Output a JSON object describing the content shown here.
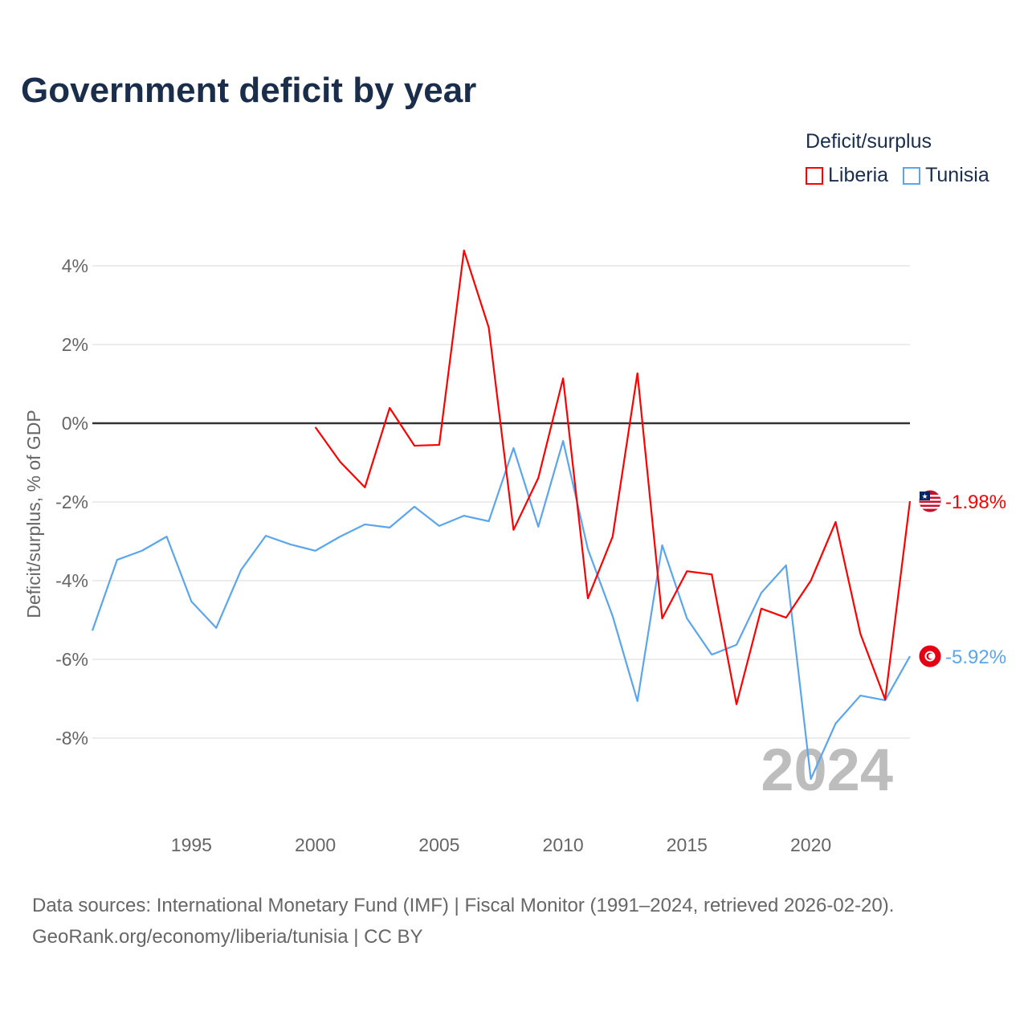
{
  "title": "Government deficit by year",
  "legend": {
    "title": "Deficit/surplus",
    "items": [
      {
        "label": "Liberia",
        "color": "#ff0000"
      },
      {
        "label": "Tunisia",
        "color": "#5aa6ee"
      }
    ]
  },
  "footer": {
    "line1": "Data sources: International Monetary Fund (IMF) | Fiscal Monitor (1991–2024, retrieved 2026-02-20).",
    "line2": "GeoRank.org/economy/liberia/tunisia | CC BY"
  },
  "chart_data": {
    "type": "line",
    "title": "Government deficit by year",
    "xlabel": "",
    "ylabel": "Deficit/surplus, % of GDP",
    "xlim": [
      1991,
      2024
    ],
    "ylim": [
      -10,
      4.5
    ],
    "yticks": [
      4,
      2,
      0,
      -2,
      -4,
      -6,
      -8
    ],
    "ytick_labels": [
      "4%",
      "2%",
      "0%",
      "-2%",
      "-4%",
      "-6%",
      "-8%"
    ],
    "xticks": [
      1995,
      2000,
      2005,
      2010,
      2015,
      2020
    ],
    "xtick_labels": [
      "1995",
      "2000",
      "2005",
      "2010",
      "2015",
      "2020"
    ],
    "year_label": "2024",
    "grid": true,
    "legend_position": "top-right",
    "series": [
      {
        "name": "Liberia",
        "color": "#ff0000",
        "end_label": "-1.98%",
        "x": [
          2000,
          2001,
          2002,
          2003,
          2004,
          2005,
          2006,
          2007,
          2008,
          2009,
          2010,
          2011,
          2012,
          2013,
          2014,
          2015,
          2016,
          2017,
          2018,
          2019,
          2020,
          2021,
          2022,
          2023,
          2024
        ],
        "values": [
          -0.1,
          -0.98,
          -1.63,
          0.39,
          -0.57,
          -0.55,
          4.39,
          2.43,
          -2.71,
          -1.39,
          1.14,
          -4.45,
          -2.88,
          1.27,
          -4.96,
          -3.76,
          -3.84,
          -7.14,
          -4.71,
          -4.94,
          -4.0,
          -2.51,
          -5.35,
          -7.02,
          -1.98
        ]
      },
      {
        "name": "Tunisia",
        "color": "#5aa6ee",
        "end_label": "-5.92%",
        "x": [
          1991,
          1992,
          1993,
          1994,
          1995,
          1996,
          1997,
          1998,
          1999,
          2000,
          2001,
          2002,
          2003,
          2004,
          2005,
          2006,
          2007,
          2008,
          2009,
          2010,
          2011,
          2012,
          2013,
          2014,
          2015,
          2016,
          2017,
          2018,
          2019,
          2020,
          2021,
          2022,
          2023,
          2024
        ],
        "values": [
          -5.27,
          -3.47,
          -3.24,
          -2.88,
          -4.53,
          -5.2,
          -3.73,
          -2.86,
          -3.08,
          -3.24,
          -2.88,
          -2.57,
          -2.65,
          -2.12,
          -2.61,
          -2.35,
          -2.49,
          -0.63,
          -2.63,
          -0.45,
          -3.2,
          -4.9,
          -7.06,
          -3.1,
          -4.96,
          -5.88,
          -5.63,
          -4.31,
          -3.61,
          -9.04,
          -7.63,
          -6.92,
          -7.04,
          -5.92
        ]
      }
    ]
  }
}
